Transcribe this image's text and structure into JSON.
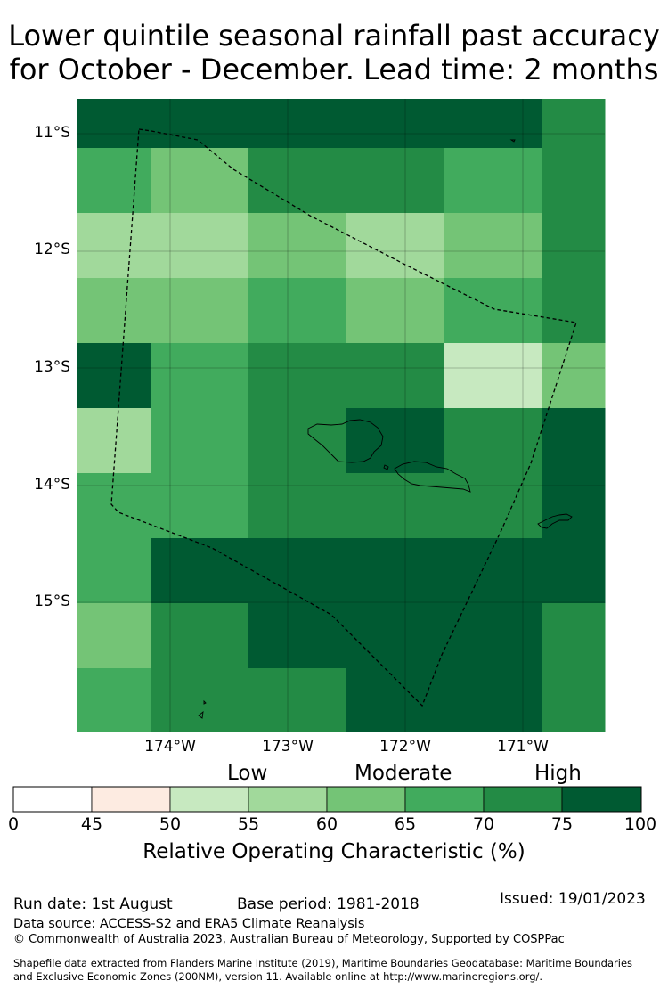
{
  "title": {
    "line1": "Lower quintile seasonal rainfall past accuracy",
    "line2": "for October - December. Lead time: 2 months"
  },
  "map": {
    "lat_labels": [
      "11°S",
      "12°S",
      "13°S",
      "14°S",
      "15°S"
    ],
    "lon_labels": [
      "174°W",
      "173°W",
      "172°W",
      "171°W"
    ],
    "grid_rows_top_to_bottom": [
      [
        75,
        75,
        75,
        75,
        75,
        70
      ],
      [
        65,
        60,
        70,
        70,
        65,
        70
      ],
      [
        55,
        55,
        60,
        55,
        60,
        70
      ],
      [
        60,
        60,
        65,
        60,
        65,
        70
      ],
      [
        75,
        65,
        70,
        70,
        50,
        60
      ],
      [
        55,
        65,
        70,
        75,
        70,
        75
      ],
      [
        65,
        65,
        70,
        70,
        70,
        75
      ],
      [
        65,
        75,
        75,
        75,
        75,
        75
      ],
      [
        60,
        70,
        75,
        75,
        75,
        70
      ],
      [
        65,
        70,
        70,
        75,
        75,
        70
      ]
    ]
  },
  "colorbar": {
    "categories": [
      "Low",
      "Moderate",
      "High"
    ],
    "ticks": [
      "0",
      "45",
      "50",
      "55",
      "60",
      "65",
      "70",
      "75",
      "100"
    ],
    "colors": [
      "#ffffff",
      "#fdebe1",
      "#c7e9c0",
      "#a1d99b",
      "#74c476",
      "#41ab5d",
      "#238b45",
      "#005a32"
    ],
    "label": "Relative Operating Characteristic (%)"
  },
  "footer": {
    "run_date": "Run date: 1st August",
    "base_period": "Base period: 1981-2018",
    "issued": "Issued: 19/01/2023",
    "data_source": "Data source: ACCESS-S2 and ERA5 Climate Reanalysis",
    "copyright": "© Commonwealth of Australia 2023, Australian Bureau of Meteorology, Supported by COSPPac",
    "shapefile_line1": "Shapefile data extracted from Flanders Marine Institute (2019), Maritime Boundaries Geodatabase: Maritime Boundaries",
    "shapefile_line2": "and Exclusive Economic Zones (200NM), version 11. Available online at http://www.marineregions.org/."
  }
}
